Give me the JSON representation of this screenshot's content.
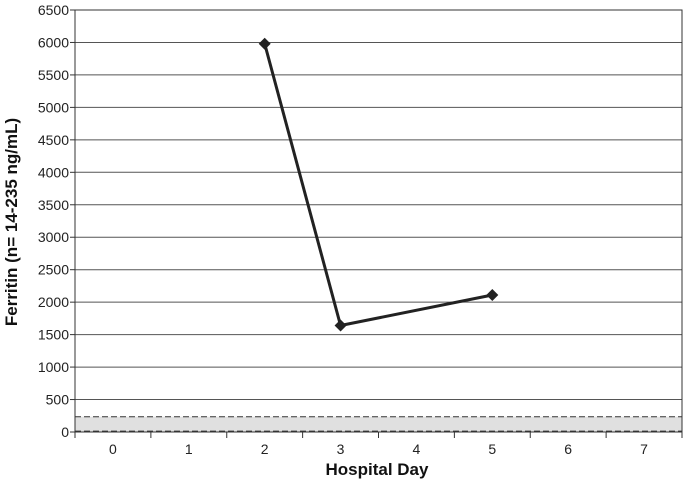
{
  "chart_data": {
    "type": "line",
    "title": "",
    "xlabel": "Hospital Day",
    "ylabel": "Ferritin (n= 14-235 ng/mL)",
    "xlim": [
      -0.5,
      7.5
    ],
    "ylim": [
      0,
      6500
    ],
    "x_ticks": [
      0,
      1,
      2,
      3,
      4,
      5,
      6,
      7
    ],
    "y_ticks": [
      0,
      500,
      1000,
      1500,
      2000,
      2500,
      3000,
      3500,
      4000,
      4500,
      5000,
      5500,
      6000,
      6500
    ],
    "grid": "horizontal",
    "legend": "none",
    "series": [
      {
        "x": [
          2,
          3,
          5
        ],
        "y": [
          5980,
          1640,
          2110
        ],
        "color": "#222222",
        "marker": "diamond"
      }
    ],
    "reference_band": {
      "y_low": 14,
      "y_high": 235,
      "fill": "#e0e0e0",
      "border_style": "dashed"
    }
  }
}
